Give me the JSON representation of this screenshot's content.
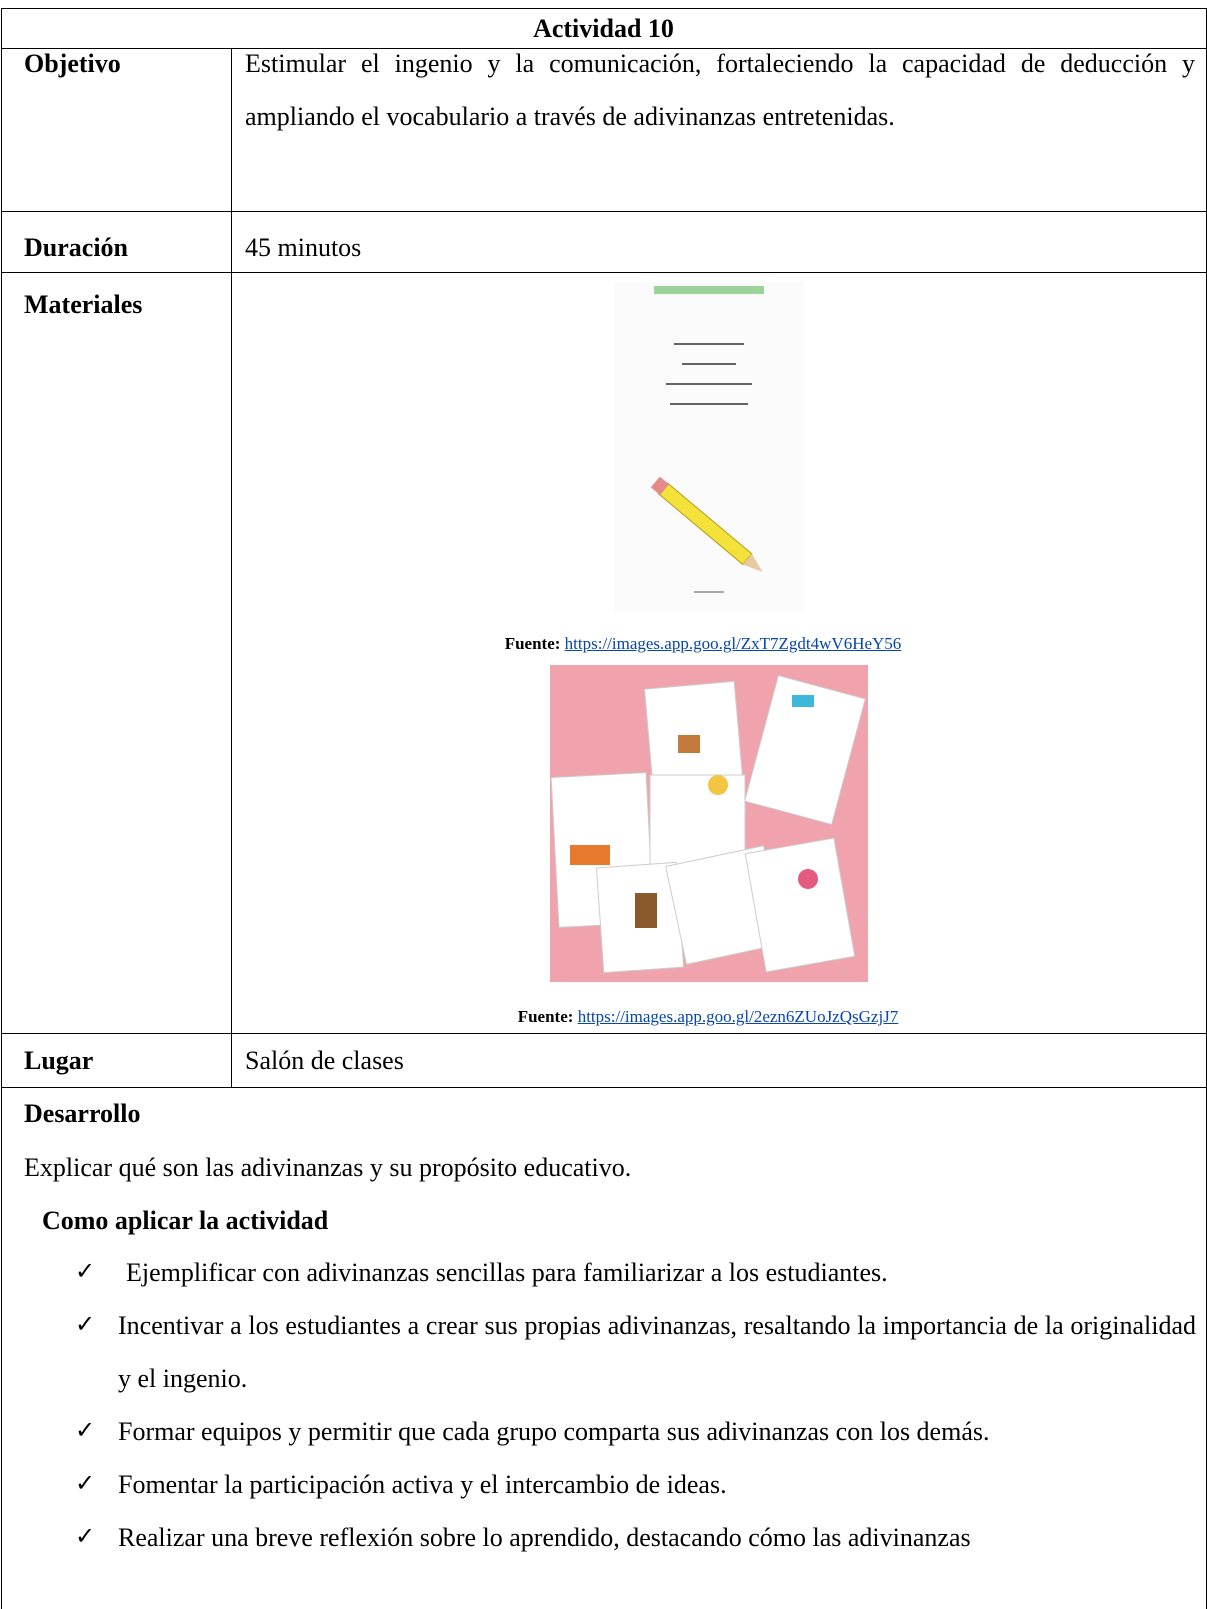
{
  "title": "Actividad 10",
  "rows": [
    {
      "label": "Objetivo",
      "text": "Estimular el ingenio y la comunicación, fortaleciendo la capacidad de deducción y ampliando el vocabulario a través de adivinanzas entretenidas."
    },
    {
      "label": "Duración",
      "text": "45 minutos"
    },
    {
      "label": "Materiales",
      "sources": [
        {
          "label": "Fuente:",
          "url": "https://images.app.goo.gl/ZxT7Zgdt4wV6HeY56"
        },
        {
          "label": "Fuente:",
          "url": "https://images.app.goo.gl/2ezn6ZUoJzQsGzjJ7"
        }
      ]
    },
    {
      "label": "Lugar",
      "text": "Salón de clases"
    }
  ],
  "development": {
    "heading": "Desarrollo",
    "intro": "Explicar qué son las adivinanzas y su propósito educativo.",
    "subheading": "Como aplicar la actividad",
    "marker": "✓",
    "items": [
      "Ejemplificar con adivinanzas sencillas para familiarizar a los estudiantes.",
      "Incentivar a los estudiantes a crear sus propias adivinanzas, resaltando la importancia de la originalidad y el ingenio.",
      "Formar equipos y permitir que cada grupo comparta sus adivinanzas con los demás.",
      "Fomentar la participación activa y el intercambio de ideas.",
      "Realizar una breve reflexión sobre lo aprendido, destacando cómo las adivinanzas"
    ]
  }
}
